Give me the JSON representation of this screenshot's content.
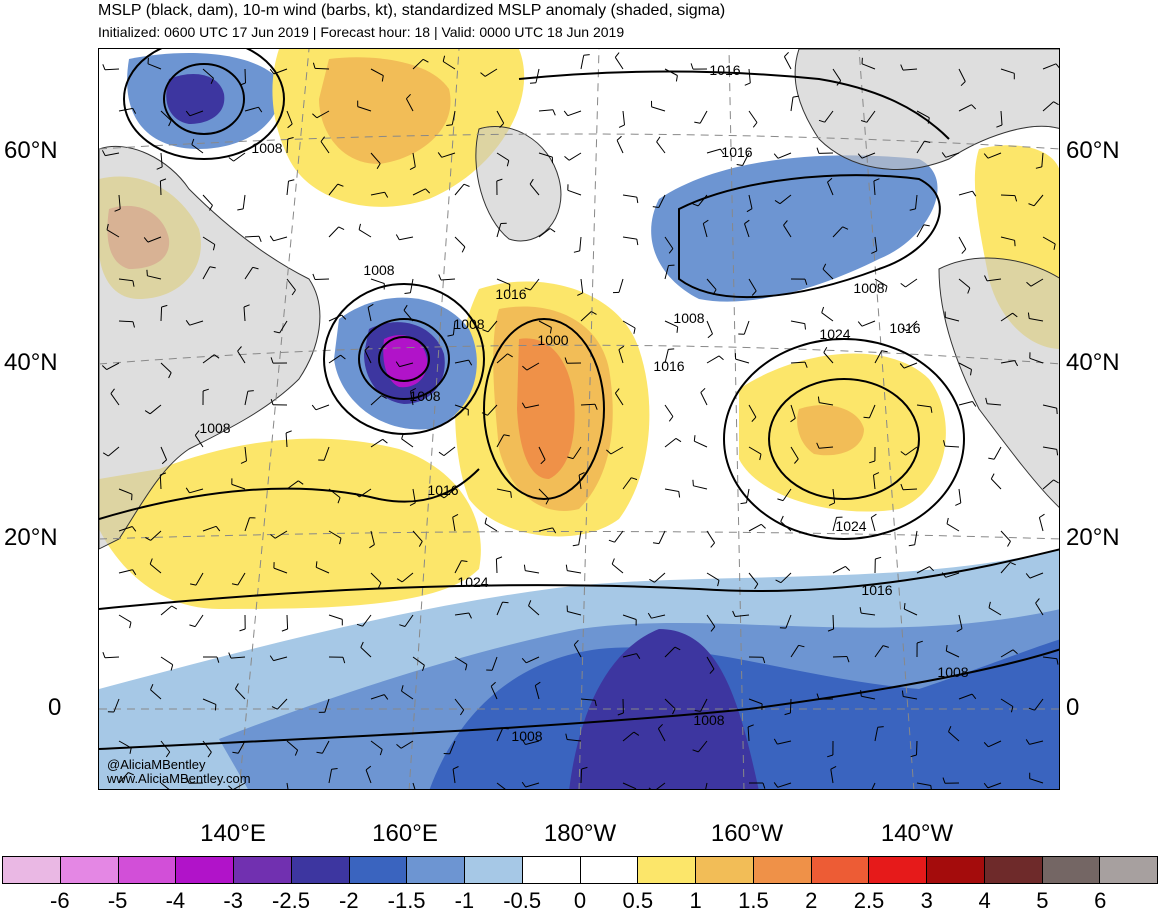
{
  "title": "MSLP (black, dam), 10-m wind (barbs, kt), standardized MSLP anomaly (shaded, sigma)",
  "subtitle": "Initialized: 0600 UTC 17 Jun 2019 | Forecast hour: 18 | Valid: 0000 UTC 18 Jun 2019",
  "lat_labels": [
    "60°N",
    "40°N",
    "20°N",
    "0"
  ],
  "lon_labels": [
    "140°E",
    "160°E",
    "180°W",
    "160°W",
    "140°W"
  ],
  "credits": [
    "@AliciaMBentley",
    "www.AliciaMBentley.com"
  ],
  "isobar_labels": [
    "1016",
    "1008",
    "1016",
    "1008",
    "1008",
    "1016",
    "1008",
    "1024",
    "1000",
    "1008",
    "1016",
    "1008",
    "1008",
    "1016",
    "1024",
    "1016",
    "1024",
    "1016",
    "1008",
    "1008",
    "1008"
  ],
  "colorbar": {
    "colors": [
      "#eab8e4",
      "#e487e4",
      "#d24fd8",
      "#b113c9",
      "#7130b0",
      "#3d36a0",
      "#3a64bf",
      "#6d95d2",
      "#a6c8e6",
      "#ffffff",
      "#ffffff",
      "#fce66a",
      "#f2bd57",
      "#ef9148",
      "#ed5c35",
      "#e61a1a",
      "#a40c0c",
      "#6e2a2a",
      "#746664",
      "#a7a09f"
    ],
    "tick_labels": [
      "-6",
      "-5",
      "-4",
      "-3",
      "-2.5",
      "-2",
      "-1.5",
      "-1",
      "-0.5",
      "0",
      "0.5",
      "1",
      "1.5",
      "2",
      "2.5",
      "3",
      "4",
      "5",
      "6"
    ]
  },
  "colors": {
    "land": "#c8c8c8",
    "ocean": "#ffffff",
    "isobar": "#000000",
    "grid": "#888888"
  }
}
